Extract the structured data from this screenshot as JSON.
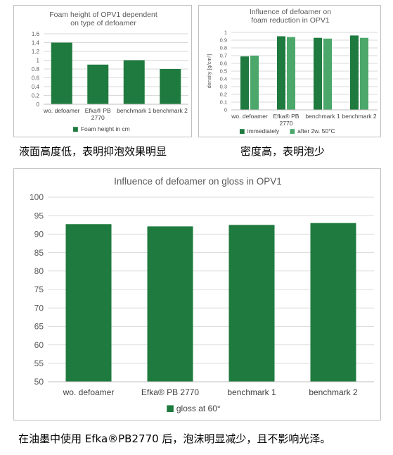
{
  "colors": {
    "dark_green": "#1e7a3e",
    "light_green": "#4ca76a",
    "grid": "#d9d9d9",
    "axis_text": "#595959"
  },
  "chart_data": [
    {
      "type": "bar",
      "title": "Foam height of OPV1 dependent on type of defoamer",
      "title_lines": [
        "Foam height of OPV1 dependent",
        "on type of defoamer"
      ],
      "categories": [
        "wo. defoamer",
        "Efka® PB 2770",
        "benchmark 1",
        "benchmark 2"
      ],
      "category_lines": [
        [
          "wo. defoamer"
        ],
        [
          "Efka® PB",
          "2770"
        ],
        [
          "benchmark 1"
        ],
        [
          "benchmark 2"
        ]
      ],
      "series": [
        {
          "name": "Foam height in cm",
          "values": [
            1.4,
            0.9,
            1.0,
            0.8
          ],
          "color": "#1e7a3e"
        }
      ],
      "ylim": [
        0,
        1.6
      ],
      "yticks": [
        "0",
        "0.2",
        "0.4",
        "0.6",
        "0.8",
        "1",
        "1.2",
        "1.4",
        "1.6"
      ],
      "ylabel": "",
      "grid": true,
      "legend": "bottom"
    },
    {
      "type": "bar",
      "title": "Influence of defoamer on foam reduction in OPV1",
      "title_lines": [
        "Influence of defoamer on",
        "foam reduction in OPV1"
      ],
      "categories": [
        "wo. defoamer",
        "Efka® PB 2770",
        "benchmark 1",
        "benchmark 2"
      ],
      "category_lines": [
        [
          "wo. defoamer"
        ],
        [
          "Efka® PB",
          "2770"
        ],
        [
          "benchmark 1"
        ],
        [
          "benchmark 2"
        ]
      ],
      "series": [
        {
          "name": "immediately",
          "values": [
            0.69,
            0.95,
            0.93,
            0.96
          ],
          "color": "#1e7a3e"
        },
        {
          "name": "after 2w. 50°C",
          "values": [
            0.7,
            0.94,
            0.92,
            0.93
          ],
          "color": "#4ca76a"
        }
      ],
      "ylim": [
        0,
        1
      ],
      "yticks": [
        "0",
        "0.1",
        "0.2",
        "0.3",
        "0.4",
        "0.5",
        "0.6",
        "0.7",
        "0.8",
        "0.9",
        "1"
      ],
      "ylabel": "density [g/cm³]",
      "grid": true,
      "legend": "bottom"
    },
    {
      "type": "bar",
      "title": "Influence of defoamer on gloss in OPV1",
      "title_lines": [
        "Influence of defoamer on gloss in OPV1"
      ],
      "categories": [
        "wo. defoamer",
        "Efka® PB 2770",
        "benchmark 1",
        "benchmark 2"
      ],
      "category_lines": [
        [
          "wo. defoamer"
        ],
        [
          "Efka® PB 2770"
        ],
        [
          "benchmark 1"
        ],
        [
          "benchmark 2"
        ]
      ],
      "series": [
        {
          "name": "gloss at 60°",
          "values": [
            92.7,
            92.1,
            92.5,
            93.0
          ],
          "color": "#1e7a3e"
        }
      ],
      "ylim": [
        50,
        100
      ],
      "yticks": [
        "50",
        "55",
        "60",
        "65",
        "70",
        "75",
        "80",
        "85",
        "90",
        "95",
        "100"
      ],
      "ylabel": "",
      "grid": true,
      "legend": "bottom"
    }
  ],
  "captions": {
    "foam_height": "液面高度低，表明抑泡效果明显",
    "density": "密度高，表明泡少",
    "gloss": "在油墨中使用 Efka®PB2770 后，泡沫明显减少，且不影响光泽。"
  }
}
